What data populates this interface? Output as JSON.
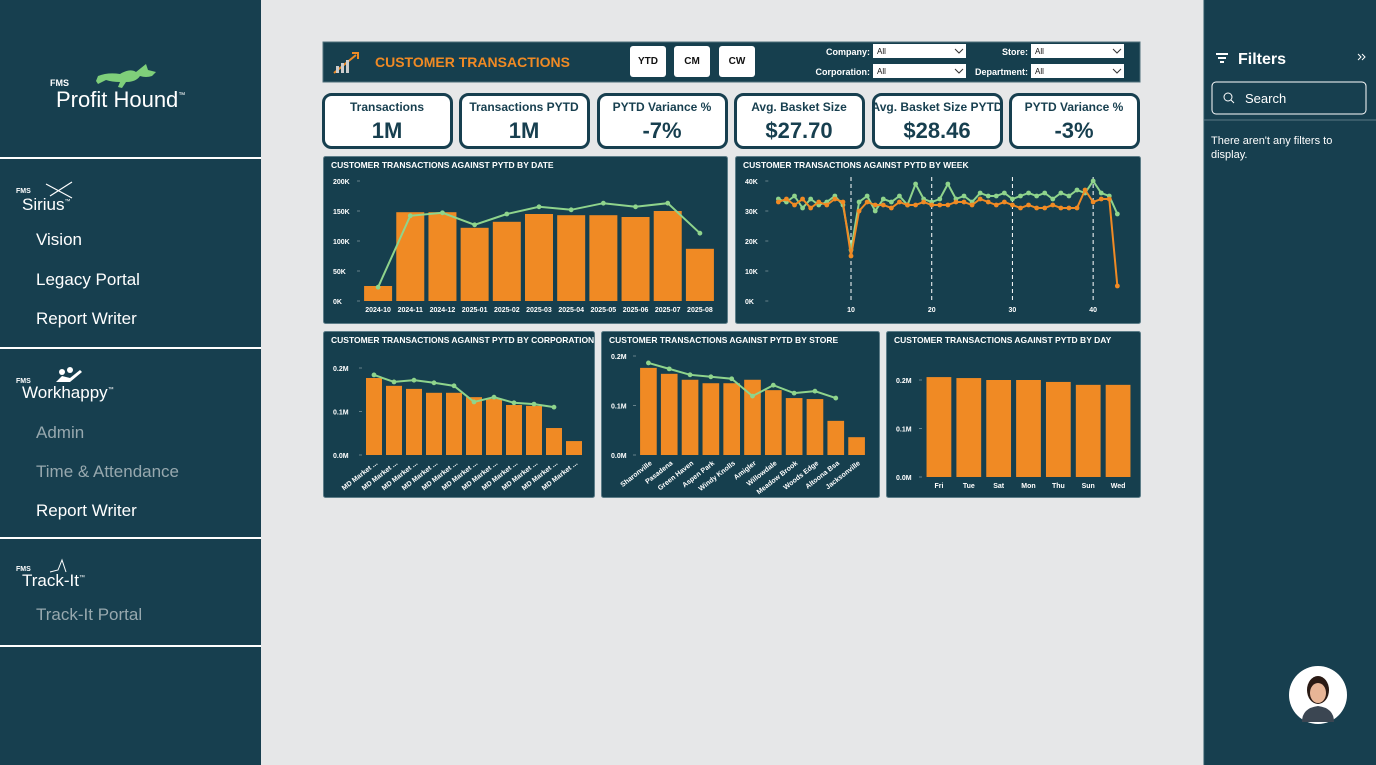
{
  "sidebar": {
    "tm": "™",
    "brand": {
      "prefix": "FMS",
      "name": "Profit Hound"
    },
    "sections": [
      {
        "prefix": "FMS",
        "name": "Sirius",
        "links": [
          {
            "label": "Vision",
            "enabled": true
          },
          {
            "label": "Legacy Portal",
            "enabled": true
          },
          {
            "label": "Report Writer",
            "enabled": true
          }
        ]
      },
      {
        "prefix": "FMS",
        "name": "Workhappy",
        "links": [
          {
            "label": "Admin",
            "enabled": false
          },
          {
            "label": "Time & Attendance",
            "enabled": false
          },
          {
            "label": "Report Writer",
            "enabled": true
          }
        ]
      },
      {
        "prefix": "FMS",
        "name": "Track-It",
        "links": [
          {
            "label": "Track-It Portal",
            "enabled": false
          }
        ]
      }
    ]
  },
  "dashboard": {
    "header": {
      "title": "CUSTOMER TRANSACTIONS",
      "buttons": [
        "YTD",
        "CM",
        "CW"
      ],
      "filters": [
        {
          "label": "Company:",
          "value": "All"
        },
        {
          "label": "Corporation:",
          "value": "All"
        },
        {
          "label": "Store:",
          "value": "All"
        },
        {
          "label": "Department:",
          "value": "All"
        }
      ]
    },
    "kpis": [
      {
        "label": "Transactions",
        "value": "1M"
      },
      {
        "label": "Transactions PYTD",
        "value": "1M"
      },
      {
        "label": "PYTD Variance %",
        "value": "-7%"
      },
      {
        "label": "Avg. Basket Size",
        "value": "$27.70"
      },
      {
        "label": "Avg. Basket Size PYTD",
        "value": "$28.46"
      },
      {
        "label": "PYTD Variance %",
        "value": "-3%"
      }
    ],
    "charts": [
      {
        "type": "combo",
        "title": "CUSTOMER TRANSACTIONS AGAINST PYTD BY DATE",
        "categories": [
          "2024-10",
          "2024-11",
          "2024-12",
          "2025-01",
          "2025-02",
          "2025-03",
          "2025-04",
          "2025-05",
          "2025-06",
          "2025-07",
          "2025-08"
        ],
        "series": [
          {
            "type": "bar",
            "color": "#f08a24",
            "values": [
              25000,
              148000,
              148000,
              122000,
              132000,
              145000,
              143000,
              143000,
              140000,
              150000,
              87000
            ]
          },
          {
            "type": "line",
            "color": "#8fd48c",
            "values": [
              23000,
              142000,
              147000,
              127000,
              145000,
              157000,
              152000,
              163000,
              157000,
              163000,
              113000
            ]
          }
        ],
        "ylim": [
          0,
          200000
        ],
        "yticks": [
          {
            "value": 0,
            "label": "0K"
          },
          {
            "value": 50000,
            "label": "50K"
          },
          {
            "value": 100000,
            "label": "100K"
          },
          {
            "value": 150000,
            "label": "150K"
          },
          {
            "value": 200000,
            "label": "200K"
          }
        ]
      },
      {
        "type": "line",
        "title": "CUSTOMER TRANSACTIONS AGAINST PYTD BY WEEK",
        "x": [
          1,
          2,
          3,
          4,
          5,
          6,
          7,
          8,
          9,
          10,
          11,
          12,
          13,
          14,
          15,
          16,
          17,
          18,
          19,
          20,
          21,
          22,
          23,
          24,
          25,
          26,
          27,
          28,
          29,
          30,
          31,
          32,
          33,
          34,
          35,
          36,
          37,
          38,
          39,
          40,
          41,
          42,
          43
        ],
        "series": [
          {
            "color": "#8fd48c",
            "values": [
              34000,
              33000,
              35000,
              31000,
              34000,
              32000,
              33000,
              35000,
              32000,
              17000,
              33000,
              35000,
              30000,
              34000,
              33000,
              35000,
              32000,
              39000,
              34000,
              33000,
              34000,
              39000,
              34000,
              35000,
              33000,
              36000,
              35000,
              35000,
              36000,
              34000,
              35000,
              36000,
              35000,
              36000,
              34000,
              36000,
              35000,
              37000,
              36000,
              40000,
              36000,
              35000,
              29000
            ]
          },
          {
            "color": "#f08a24",
            "values": [
              33000,
              34000,
              32000,
              34000,
              31000,
              33000,
              32000,
              34000,
              33000,
              15000,
              30000,
              33000,
              32000,
              32000,
              31000,
              33000,
              32000,
              32000,
              33000,
              32000,
              32000,
              32000,
              33000,
              33000,
              32000,
              34000,
              33000,
              32000,
              33000,
              32000,
              31000,
              32000,
              31000,
              31000,
              32000,
              31000,
              31000,
              31000,
              37000,
              33000,
              34000,
              34000,
              5000
            ]
          }
        ],
        "xlim": [
          0,
          45
        ],
        "xticks": [
          10,
          20,
          30,
          40
        ],
        "grid": true,
        "ylim": [
          0,
          40000
        ],
        "yticks": [
          {
            "value": 0,
            "label": "0K"
          },
          {
            "value": 10000,
            "label": "10K"
          },
          {
            "value": 20000,
            "label": "20K"
          },
          {
            "value": 30000,
            "label": "30K"
          },
          {
            "value": 40000,
            "label": "40K"
          }
        ]
      },
      {
        "type": "combo",
        "title": "CUSTOMER TRANSACTIONS AGAINST PYTD BY CORPORATION",
        "categories": [
          "MD Market ...",
          "MD Market ...",
          "MD Market ...",
          "MD Market ...",
          "MD Market ...",
          "MD Market ...",
          "MD Market ...",
          "MD Market ...",
          "MD Market ...",
          "MD Market ...",
          "MD Market ..."
        ],
        "series": [
          {
            "type": "bar",
            "color": "#f08a24",
            "values": [
              177000,
              159000,
              152000,
              143000,
              143000,
              133000,
              129000,
              115000,
              113000,
              62000,
              32000
            ]
          },
          {
            "type": "line",
            "color": "#8fd48c",
            "values": [
              184000,
              168000,
              172000,
              166000,
              159000,
              122000,
              133000,
              120000,
              117000,
              110000,
              null
            ]
          }
        ],
        "ylim": [
          0,
          200000
        ],
        "yticks": [
          {
            "value": 0,
            "label": "0.0M"
          },
          {
            "value": 100000,
            "label": "0.1M"
          },
          {
            "value": 200000,
            "label": "0.2M"
          }
        ]
      },
      {
        "type": "combo",
        "title": "CUSTOMER TRANSACTIONS AGAINST PYTD BY STORE",
        "categories": [
          "Sharonville",
          "Pasadena",
          "Green Haven",
          "Aspen Park",
          "Windy Knolls",
          "Amigler",
          "Willowdale",
          "Meadow Brook",
          "Woods Edge",
          "Altoona Bsa",
          "Jacksonville"
        ],
        "series": [
          {
            "type": "bar",
            "color": "#f08a24",
            "values": [
              176000,
              164000,
              152000,
              145000,
              145000,
              152000,
              131000,
              115000,
              113000,
              69000,
              36000
            ]
          },
          {
            "type": "line",
            "color": "#8fd48c",
            "values": [
              186000,
              174000,
              162000,
              158000,
              154000,
              119000,
              141000,
              125000,
              129000,
              115000,
              null
            ]
          }
        ],
        "ylim": [
          0,
          200000
        ],
        "yticks": [
          {
            "value": 0,
            "label": "0.0M"
          },
          {
            "value": 100000,
            "label": "0.1M"
          },
          {
            "value": 200000,
            "label": "0.2M"
          }
        ]
      },
      {
        "type": "combo",
        "title": "CUSTOMER TRANSACTIONS AGAINST PYTD BY DAY",
        "categories": [
          "Fri",
          "Tue",
          "Sat",
          "Mon",
          "Thu",
          "Sun",
          "Wed"
        ],
        "series": [
          {
            "type": "bar",
            "color": "#f08a24",
            "values": [
              206000,
              204000,
              200000,
              200000,
              196000,
              190000,
              190000
            ]
          }
        ],
        "ylim": [
          0,
          200000
        ],
        "yticks": [
          {
            "value": 0,
            "label": "0.0M"
          },
          {
            "value": 100000,
            "label": "0.1M"
          },
          {
            "value": 200000,
            "label": "0.2M"
          }
        ]
      }
    ]
  },
  "filters_pane": {
    "title": "Filters",
    "search_placeholder": "Search",
    "message": "There aren't any filters to display."
  }
}
